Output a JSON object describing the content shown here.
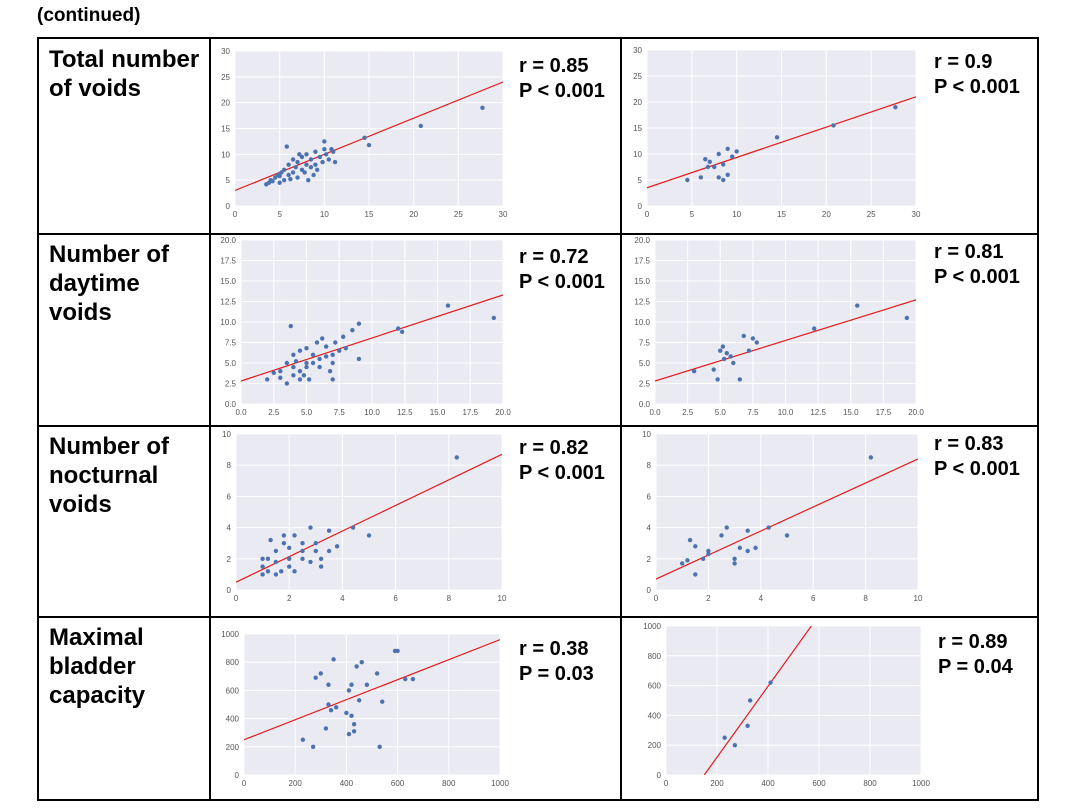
{
  "caption": "(continued)",
  "rows": [
    {
      "label": "Total number\nof voids"
    },
    {
      "label": "Number of\ndaytime\nvoids"
    },
    {
      "label": "Number of\nnocturnal\nvoids"
    },
    {
      "label": "Maximal\nbladder\ncapacity"
    }
  ],
  "colors": {
    "background": "#eaeaf2",
    "point": "#4c72b0",
    "line": "#e31a1c",
    "grid": "#ffffff"
  },
  "chart_data": [
    {
      "type": "scatter",
      "panel": "r1-left",
      "r": "r = 0.85",
      "p": "P < 0.001",
      "xlim": [
        0,
        30
      ],
      "ylim": [
        0,
        30
      ],
      "xticks": [
        0,
        5,
        10,
        15,
        20,
        25,
        30
      ],
      "yticks": [
        0,
        5,
        10,
        15,
        20,
        25,
        30
      ],
      "xticklabels": [
        "0",
        "5",
        "10",
        "15",
        "20",
        "25",
        "30"
      ],
      "yticklabels": [
        "0",
        "5",
        "10",
        "15",
        "20",
        "25",
        "30"
      ],
      "fit": [
        [
          0,
          3
        ],
        [
          30,
          24
        ]
      ],
      "points": [
        [
          3.5,
          4.2
        ],
        [
          3.8,
          4.5
        ],
        [
          4,
          5
        ],
        [
          4.2,
          4.8
        ],
        [
          4.5,
          5.5
        ],
        [
          4.8,
          6
        ],
        [
          5,
          4.5
        ],
        [
          5,
          5.8
        ],
        [
          5.2,
          6.5
        ],
        [
          5.5,
          5
        ],
        [
          5.5,
          7
        ],
        [
          5.8,
          11.5
        ],
        [
          6,
          6
        ],
        [
          6,
          8
        ],
        [
          6.2,
          5.2
        ],
        [
          6.5,
          6.5
        ],
        [
          6.5,
          9
        ],
        [
          6.8,
          7.5
        ],
        [
          7,
          5.5
        ],
        [
          7,
          8.5
        ],
        [
          7.2,
          10
        ],
        [
          7.5,
          7
        ],
        [
          7.5,
          9.5
        ],
        [
          7.8,
          6.5
        ],
        [
          8,
          8
        ],
        [
          8,
          10
        ],
        [
          8.2,
          5
        ],
        [
          8.5,
          7.5
        ],
        [
          8.5,
          9
        ],
        [
          8.8,
          6
        ],
        [
          9,
          8
        ],
        [
          9,
          10.5
        ],
        [
          9.2,
          7
        ],
        [
          9.5,
          9.5
        ],
        [
          9.8,
          8.5
        ],
        [
          10,
          11
        ],
        [
          10,
          12.5
        ],
        [
          10.2,
          10
        ],
        [
          10.5,
          9
        ],
        [
          10.8,
          11
        ],
        [
          11,
          10.5
        ],
        [
          11.2,
          8.5
        ],
        [
          14.5,
          13.2
        ],
        [
          15,
          11.8
        ],
        [
          20.8,
          15.5
        ],
        [
          27.7,
          19
        ]
      ]
    },
    {
      "type": "scatter",
      "panel": "r1-right",
      "r": "r = 0.9",
      "p": "P < 0.001",
      "xlim": [
        0,
        30
      ],
      "ylim": [
        0,
        30
      ],
      "xticks": [
        0,
        5,
        10,
        15,
        20,
        25,
        30
      ],
      "yticks": [
        0,
        5,
        10,
        15,
        20,
        25,
        30
      ],
      "xticklabels": [
        "0",
        "5",
        "10",
        "15",
        "20",
        "25",
        "30"
      ],
      "yticklabels": [
        "0",
        "5",
        "10",
        "15",
        "20",
        "25",
        "30"
      ],
      "fit": [
        [
          0,
          3.5
        ],
        [
          30,
          21
        ]
      ],
      "points": [
        [
          4.5,
          5
        ],
        [
          6,
          5.5
        ],
        [
          6.5,
          9
        ],
        [
          6.8,
          7.5
        ],
        [
          7,
          8.5
        ],
        [
          7.5,
          7.5
        ],
        [
          8,
          5.5
        ],
        [
          8,
          10
        ],
        [
          8.5,
          5
        ],
        [
          8.5,
          8
        ],
        [
          9,
          11
        ],
        [
          9,
          6
        ],
        [
          9.5,
          9.5
        ],
        [
          10,
          10.5
        ],
        [
          14.5,
          13.2
        ],
        [
          20.8,
          15.5
        ],
        [
          27.7,
          19
        ]
      ]
    },
    {
      "type": "scatter",
      "panel": "r2-left",
      "r": "r = 0.72",
      "p": "P < 0.001",
      "xlim": [
        0,
        20
      ],
      "ylim": [
        0,
        20
      ],
      "xticks": [
        0,
        2.5,
        5,
        7.5,
        10,
        12.5,
        15,
        17.5,
        20
      ],
      "yticks": [
        0,
        2.5,
        5,
        7.5,
        10,
        12.5,
        15,
        17.5,
        20
      ],
      "xticklabels": [
        "0.0",
        "2.5",
        "5.0",
        "7.5",
        "10.0",
        "12.5",
        "15.0",
        "17.5",
        "20.0"
      ],
      "yticklabels": [
        "0.0",
        "2.5",
        "5.0",
        "7.5",
        "10.0",
        "12.5",
        "15.0",
        "17.5",
        "20.0"
      ],
      "fit": [
        [
          0,
          2.8
        ],
        [
          20,
          13.3
        ]
      ],
      "points": [
        [
          2,
          3
        ],
        [
          2.5,
          3.8
        ],
        [
          3,
          3.2
        ],
        [
          3,
          4
        ],
        [
          3.5,
          2.5
        ],
        [
          3.5,
          5
        ],
        [
          3.8,
          9.5
        ],
        [
          4,
          3.5
        ],
        [
          4,
          4.5
        ],
        [
          4,
          6
        ],
        [
          4.2,
          5.2
        ],
        [
          4.5,
          3
        ],
        [
          4.5,
          4
        ],
        [
          4.5,
          6.5
        ],
        [
          4.8,
          3.5
        ],
        [
          5,
          4.5
        ],
        [
          5,
          5
        ],
        [
          5,
          6.8
        ],
        [
          5.2,
          3
        ],
        [
          5.5,
          5
        ],
        [
          5.5,
          6
        ],
        [
          5.8,
          7.5
        ],
        [
          6,
          4.5
        ],
        [
          6,
          5.5
        ],
        [
          6.2,
          8
        ],
        [
          6.5,
          5.8
        ],
        [
          6.5,
          7
        ],
        [
          6.8,
          4
        ],
        [
          7,
          3
        ],
        [
          7,
          5
        ],
        [
          7,
          6
        ],
        [
          7.2,
          7.5
        ],
        [
          7.5,
          6.5
        ],
        [
          7.8,
          8.2
        ],
        [
          8,
          6.8
        ],
        [
          8.5,
          9
        ],
        [
          9,
          9.8
        ],
        [
          9,
          5.5
        ],
        [
          12,
          9.2
        ],
        [
          12.3,
          8.8
        ],
        [
          15.8,
          12
        ],
        [
          19.3,
          10.5
        ]
      ]
    },
    {
      "type": "scatter",
      "panel": "r2-right",
      "r": "r = 0.81",
      "p": "P < 0.001",
      "xlim": [
        0,
        20
      ],
      "ylim": [
        0,
        20
      ],
      "xticks": [
        0,
        2.5,
        5,
        7.5,
        10,
        12.5,
        15,
        17.5,
        20
      ],
      "yticks": [
        0,
        2.5,
        5,
        7.5,
        10,
        12.5,
        15,
        17.5,
        20
      ],
      "xticklabels": [
        "0.0",
        "2.5",
        "5.0",
        "7.5",
        "10.0",
        "12.5",
        "15.0",
        "17.5",
        "20.0"
      ],
      "yticklabels": [
        "0.0",
        "2.5",
        "5.0",
        "7.5",
        "10.0",
        "12.5",
        "15.0",
        "17.5",
        "20.0"
      ],
      "fit": [
        [
          0,
          2.8
        ],
        [
          20,
          12.7
        ]
      ],
      "points": [
        [
          3,
          4
        ],
        [
          4.5,
          4.2
        ],
        [
          4.8,
          3
        ],
        [
          5,
          6.5
        ],
        [
          5.2,
          7
        ],
        [
          5.3,
          5.5
        ],
        [
          5.5,
          6.2
        ],
        [
          5.8,
          5.8
        ],
        [
          6,
          5
        ],
        [
          6.5,
          3
        ],
        [
          6.8,
          8.3
        ],
        [
          7.2,
          6.5
        ],
        [
          7.5,
          8
        ],
        [
          7.8,
          7.5
        ],
        [
          12.2,
          9.2
        ],
        [
          15.5,
          12
        ],
        [
          19.3,
          10.5
        ]
      ]
    },
    {
      "type": "scatter",
      "panel": "r3-left",
      "r": "r = 0.82",
      "p": "P < 0.001",
      "xlim": [
        0,
        10
      ],
      "ylim": [
        0,
        10
      ],
      "xticks": [
        0,
        2,
        4,
        6,
        8,
        10
      ],
      "yticks": [
        0,
        2,
        4,
        6,
        8,
        10
      ],
      "xticklabels": [
        "0",
        "2",
        "4",
        "6",
        "8",
        "10"
      ],
      "yticklabels": [
        "0",
        "2",
        "4",
        "6",
        "8",
        "10"
      ],
      "fit": [
        [
          0,
          0.5
        ],
        [
          10,
          8.7
        ]
      ],
      "points": [
        [
          1,
          1
        ],
        [
          1,
          1.5
        ],
        [
          1,
          2
        ],
        [
          1.2,
          1.2
        ],
        [
          1.2,
          2
        ],
        [
          1.3,
          3.2
        ],
        [
          1.5,
          1
        ],
        [
          1.5,
          1.8
        ],
        [
          1.5,
          2.5
        ],
        [
          1.7,
          1.2
        ],
        [
          1.8,
          3
        ],
        [
          1.8,
          3.5
        ],
        [
          2,
          1.5
        ],
        [
          2,
          2
        ],
        [
          2,
          2.7
        ],
        [
          2.2,
          1.2
        ],
        [
          2.2,
          3.5
        ],
        [
          2.5,
          2
        ],
        [
          2.5,
          2.5
        ],
        [
          2.5,
          3
        ],
        [
          2.8,
          1.8
        ],
        [
          2.8,
          4
        ],
        [
          3,
          2.5
        ],
        [
          3,
          3
        ],
        [
          3.2,
          1.5
        ],
        [
          3.2,
          2
        ],
        [
          3.5,
          3.8
        ],
        [
          3.5,
          2.5
        ],
        [
          3.8,
          2.8
        ],
        [
          4.4,
          4
        ],
        [
          5,
          3.5
        ],
        [
          8.3,
          8.5
        ]
      ]
    },
    {
      "type": "scatter",
      "panel": "r3-right",
      "r": "r = 0.83",
      "p": "P < 0.001",
      "xlim": [
        0,
        10
      ],
      "ylim": [
        0,
        10
      ],
      "xticks": [
        0,
        2,
        4,
        6,
        8,
        10
      ],
      "yticks": [
        0,
        2,
        4,
        6,
        8,
        10
      ],
      "xticklabels": [
        "0",
        "2",
        "4",
        "6",
        "8",
        "10"
      ],
      "yticklabels": [
        "0",
        "2",
        "4",
        "6",
        "8",
        "10"
      ],
      "fit": [
        [
          0,
          0.7
        ],
        [
          10,
          8.4
        ]
      ],
      "points": [
        [
          1,
          1.7
        ],
        [
          1.2,
          1.9
        ],
        [
          1.3,
          3.2
        ],
        [
          1.5,
          2.8
        ],
        [
          1.5,
          1
        ],
        [
          1.8,
          2
        ],
        [
          2,
          2.3
        ],
        [
          2,
          2.5
        ],
        [
          2.5,
          3.5
        ],
        [
          2.7,
          4
        ],
        [
          3,
          2
        ],
        [
          3,
          1.7
        ],
        [
          3.2,
          2.7
        ],
        [
          3.5,
          2.5
        ],
        [
          3.5,
          3.8
        ],
        [
          3.8,
          2.7
        ],
        [
          4.3,
          4
        ],
        [
          5,
          3.5
        ],
        [
          8.2,
          8.5
        ]
      ]
    },
    {
      "type": "scatter",
      "panel": "r4-left",
      "r": "r = 0.38",
      "p": "P = 0.03",
      "xlim": [
        0,
        1000
      ],
      "ylim": [
        0,
        1000
      ],
      "xticks": [
        0,
        200,
        400,
        600,
        800,
        1000
      ],
      "yticks": [
        0,
        200,
        400,
        600,
        800,
        1000
      ],
      "xticklabels": [
        "0",
        "200",
        "400",
        "600",
        "800",
        "1000"
      ],
      "yticklabels": [
        "0",
        "200",
        "400",
        "600",
        "800",
        "1000"
      ],
      "fit": [
        [
          0,
          250
        ],
        [
          1000,
          960
        ]
      ],
      "points": [
        [
          230,
          250
        ],
        [
          270,
          200
        ],
        [
          280,
          690
        ],
        [
          300,
          720
        ],
        [
          320,
          330
        ],
        [
          330,
          640
        ],
        [
          330,
          500
        ],
        [
          340,
          460
        ],
        [
          350,
          820
        ],
        [
          360,
          480
        ],
        [
          400,
          440
        ],
        [
          410,
          290
        ],
        [
          410,
          600
        ],
        [
          420,
          640
        ],
        [
          420,
          420
        ],
        [
          430,
          360
        ],
        [
          430,
          310
        ],
        [
          440,
          770
        ],
        [
          450,
          530
        ],
        [
          460,
          800
        ],
        [
          480,
          640
        ],
        [
          520,
          720
        ],
        [
          530,
          200
        ],
        [
          540,
          520
        ],
        [
          590,
          880
        ],
        [
          600,
          880
        ],
        [
          630,
          680
        ],
        [
          660,
          680
        ]
      ]
    },
    {
      "type": "scatter",
      "panel": "r4-right",
      "r": "r = 0.89",
      "p": "P = 0.04",
      "xlim": [
        0,
        1000
      ],
      "ylim": [
        0,
        1000
      ],
      "xticks": [
        0,
        200,
        400,
        600,
        800,
        1000
      ],
      "yticks": [
        0,
        200,
        400,
        600,
        800,
        1000
      ],
      "xticklabels": [
        "0",
        "200",
        "400",
        "600",
        "800",
        "1000"
      ],
      "yticklabels": [
        "0",
        "200",
        "400",
        "600",
        "800",
        "1000"
      ],
      "fit": [
        [
          150,
          0
        ],
        [
          570,
          1000
        ]
      ],
      "points": [
        [
          230,
          250
        ],
        [
          270,
          200
        ],
        [
          320,
          330
        ],
        [
          330,
          500
        ],
        [
          410,
          620
        ]
      ]
    }
  ]
}
